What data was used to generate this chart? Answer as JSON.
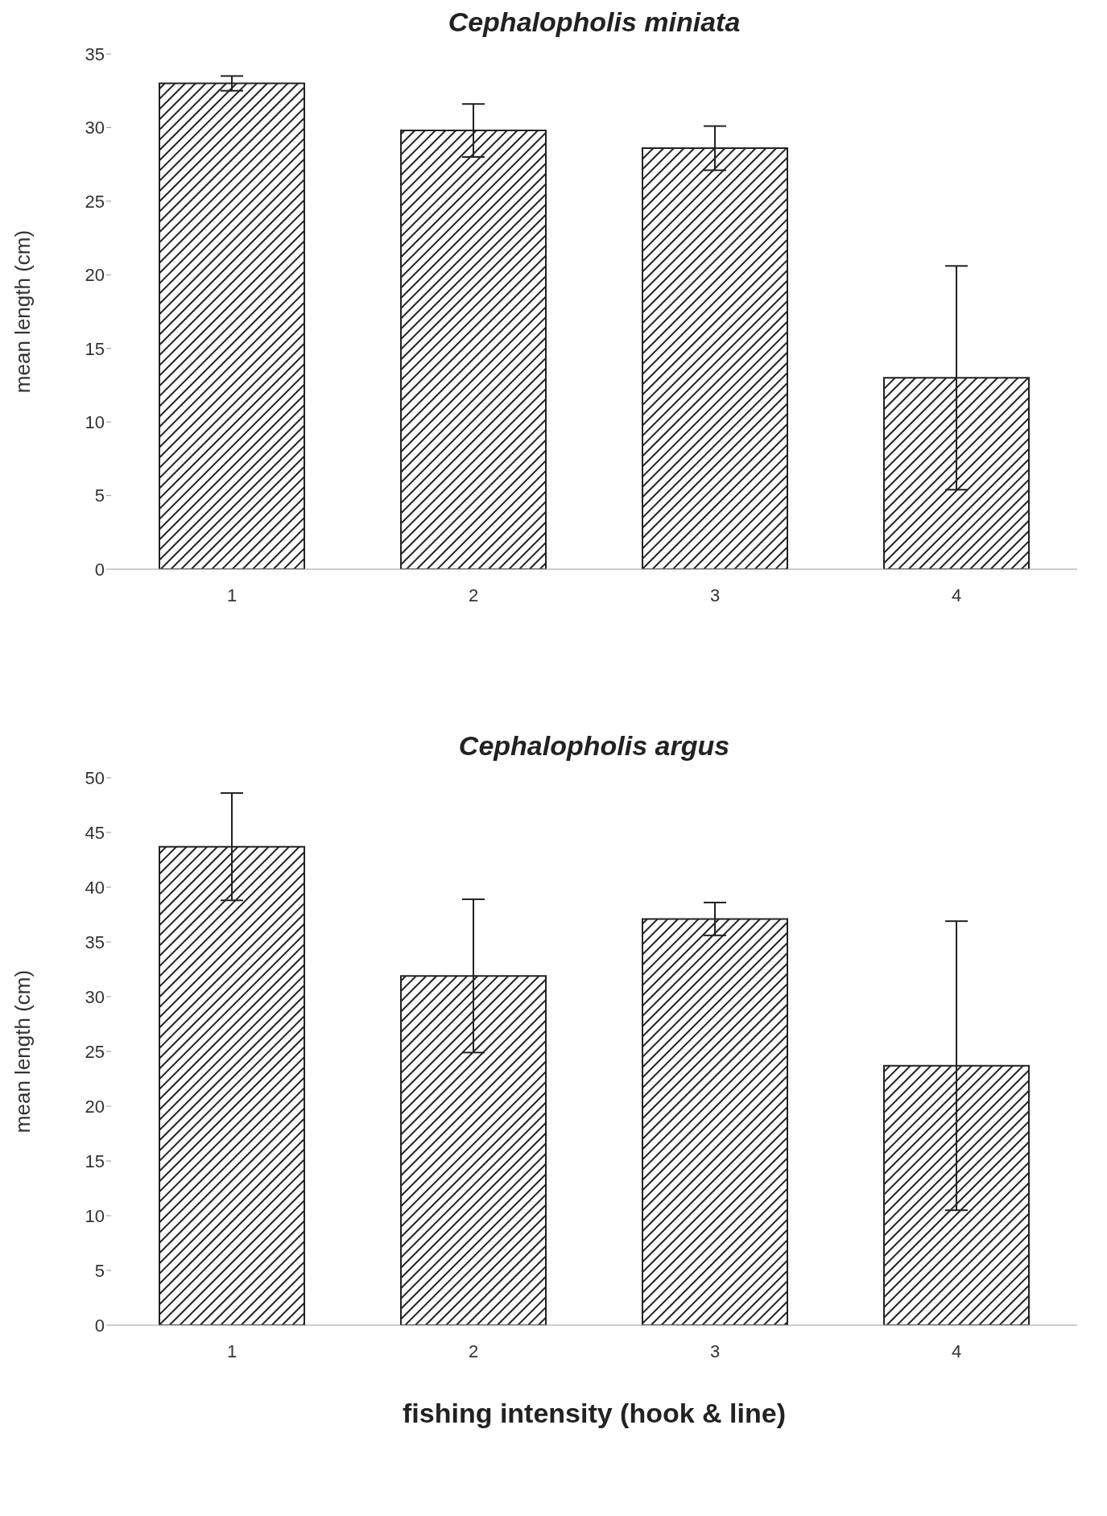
{
  "chart_data": [
    {
      "type": "bar",
      "title": "Cephalopholis miniata",
      "ylabel": "mean length (cm)",
      "categories": [
        "1",
        "2",
        "3",
        "4"
      ],
      "values": [
        33.0,
        29.8,
        28.6,
        13.0
      ],
      "errors": [
        0.5,
        1.8,
        1.5,
        7.6
      ],
      "color": "#222222",
      "ylim": [
        0,
        35
      ],
      "yticks": [
        0,
        5,
        10,
        15,
        20,
        25,
        30,
        35
      ],
      "grid": false,
      "legend": false
    },
    {
      "type": "bar",
      "title": "Cephalopholis argus",
      "ylabel": "mean length (cm)",
      "xlabel": "fishing intensity (hook & line)",
      "categories": [
        "1",
        "2",
        "3",
        "4"
      ],
      "values": [
        43.7,
        31.9,
        37.1,
        23.7
      ],
      "errors": [
        4.9,
        7.0,
        1.5,
        13.2
      ],
      "color": "#222222",
      "ylim": [
        0,
        50
      ],
      "yticks": [
        0,
        5,
        10,
        15,
        20,
        25,
        30,
        35,
        40,
        45,
        50
      ],
      "grid": false,
      "legend": false
    }
  ]
}
